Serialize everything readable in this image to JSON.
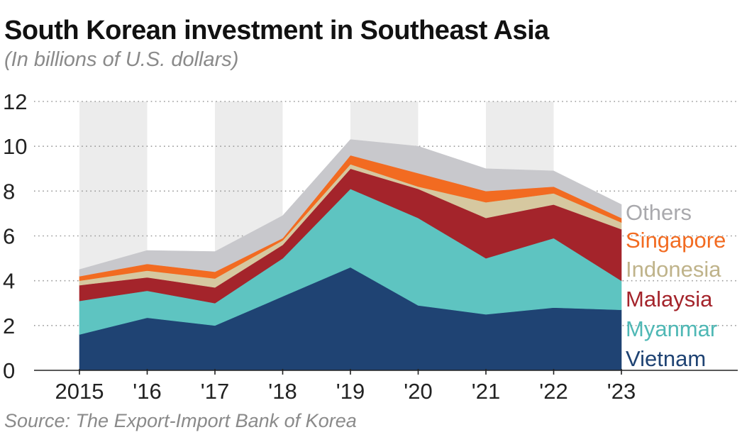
{
  "title": "South Korean investment in Southeast Asia",
  "subtitle": "(In billions of U.S. dollars)",
  "source": "Source: The Export-Import Bank of Korea",
  "chart_data": {
    "type": "area",
    "stacked": true,
    "categories": [
      "2015",
      "'16",
      "'17",
      "'18",
      "'19",
      "'20",
      "'21",
      "'22",
      "'23"
    ],
    "ylim": [
      0,
      12
    ],
    "yticks": [
      0,
      2,
      4,
      6,
      8,
      10,
      12
    ],
    "grid": "horizontal dotted",
    "legend": "right, labels at series end",
    "shaded_bands": [
      "2015",
      "'17",
      "'19",
      "'21"
    ],
    "series": [
      {
        "name": "Vietnam",
        "color": "#1f4373",
        "values": [
          1.6,
          2.35,
          2.0,
          3.3,
          4.6,
          2.9,
          2.5,
          2.8,
          2.7
        ]
      },
      {
        "name": "Myanmar",
        "color": "#5ec4c1",
        "values": [
          1.5,
          1.2,
          1.0,
          1.7,
          3.5,
          3.9,
          2.5,
          3.1,
          1.3
        ]
      },
      {
        "name": "Malaysia",
        "color": "#a4242b",
        "values": [
          0.7,
          0.6,
          0.7,
          0.6,
          0.9,
          1.3,
          1.8,
          1.5,
          2.3
        ]
      },
      {
        "name": "Indonesia",
        "color": "#d6c8a0",
        "values": [
          0.2,
          0.3,
          0.4,
          0.2,
          0.2,
          0.1,
          0.7,
          0.5,
          0.3
        ]
      },
      {
        "name": "Singapore",
        "color": "#f26b21",
        "values": [
          0.2,
          0.3,
          0.3,
          0.1,
          0.4,
          0.6,
          0.5,
          0.3,
          0.2
        ]
      },
      {
        "name": "Others",
        "color": "#c8c8cc",
        "values": [
          0.3,
          0.6,
          0.9,
          1.0,
          0.7,
          1.2,
          1.0,
          0.7,
          0.6
        ]
      }
    ]
  }
}
